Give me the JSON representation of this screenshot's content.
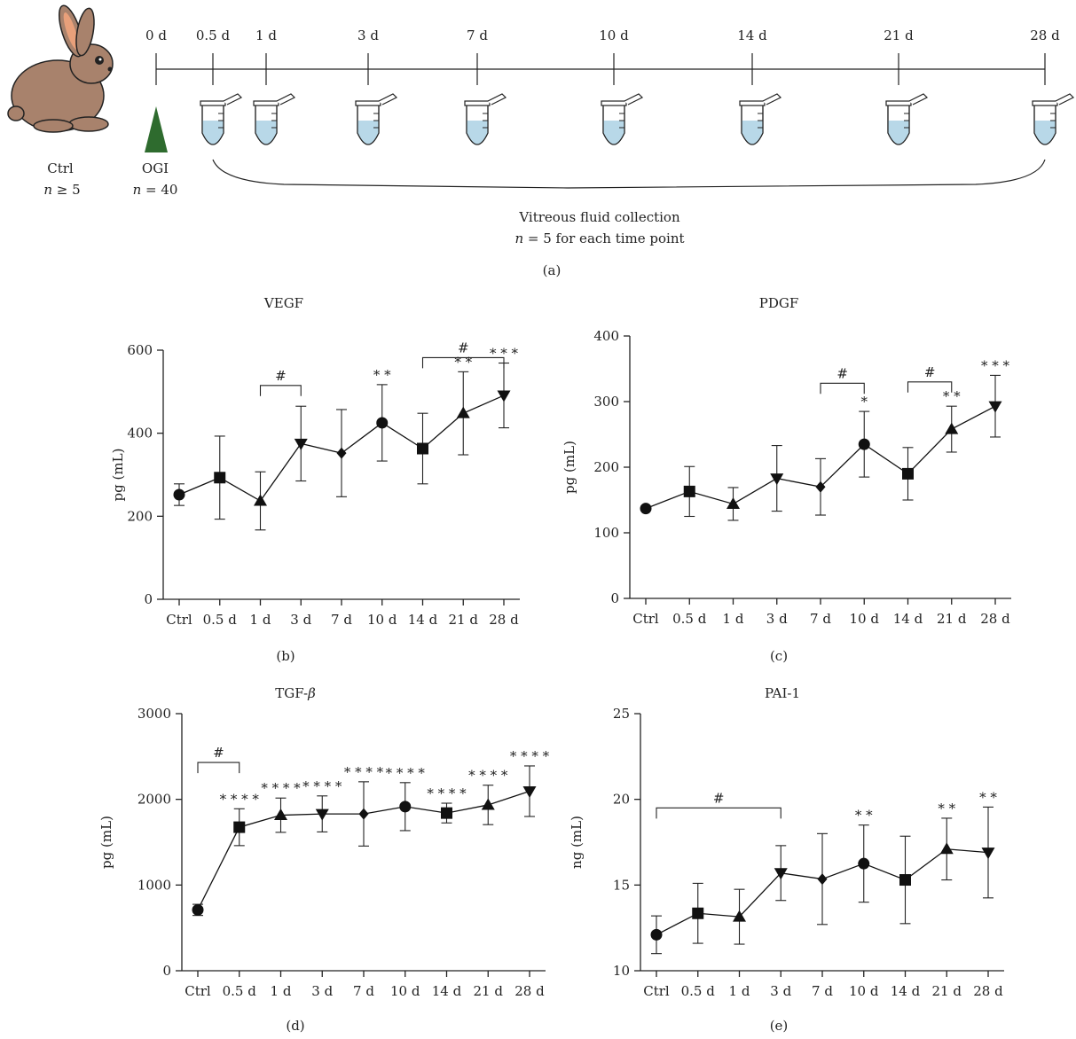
{
  "schematic": {
    "timeline_labels": [
      "0 d",
      "0.5 d",
      "1 d",
      "3 d",
      "7 d",
      "10 d",
      "14 d",
      "21 d",
      "28 d"
    ],
    "ctrl_label": "Ctrl",
    "ctrl_n_var": "n",
    "ctrl_n_rest": " ≥ 5",
    "ogi_label": "OGI",
    "ogi_n_var": "n",
    "ogi_n_rest": " = 40",
    "collection_title": "Vitreous fluid collection",
    "collection_n_var": "n",
    "collection_n_rest": " = 5 for each time point",
    "panel_letter": "(a)",
    "colors": {
      "rabbit_body": "#a8826c",
      "rabbit_ear": "#e8a07a",
      "triangle": "#2e6b2e",
      "tube_fluid": "#b8d8e8"
    },
    "icons": [
      "rabbit-icon",
      "triangle-icon",
      "tube-icon"
    ]
  },
  "chart_data": [
    {
      "id": "b",
      "type": "line",
      "title": "VEGF",
      "ylabel": "pg (mL)",
      "xlabel": "",
      "panel_letter": "(b)",
      "categories": [
        "Ctrl",
        "0.5 d",
        "1 d",
        "3 d",
        "7 d",
        "10 d",
        "14 d",
        "21 d",
        "28 d"
      ],
      "yticks": [
        0,
        200,
        400,
        600
      ],
      "ylim": [
        0,
        600
      ],
      "values": [
        252,
        293,
        237,
        375,
        352,
        425,
        363,
        448,
        491
      ],
      "errors": [
        26,
        100,
        70,
        90,
        105,
        92,
        85,
        100,
        78
      ],
      "markers": [
        "circle",
        "square",
        "triangle",
        "tri-down",
        "diamond",
        "circle",
        "square",
        "triangle",
        "tri-down"
      ],
      "annotations": [
        {
          "index": 5,
          "text": "* *"
        },
        {
          "index": 7,
          "text": "* *"
        },
        {
          "index": 8,
          "text": "* * *"
        }
      ],
      "brackets": [
        {
          "from": 2,
          "to": 3,
          "y": 515,
          "text": "#"
        },
        {
          "from": 6,
          "to": 8,
          "y": 582,
          "text": "#"
        }
      ]
    },
    {
      "id": "c",
      "type": "line",
      "title": "PDGF",
      "ylabel": "pg (mL)",
      "xlabel": "",
      "panel_letter": "(c)",
      "categories": [
        "Ctrl",
        "0.5 d",
        "1 d",
        "3 d",
        "7 d",
        "10 d",
        "14 d",
        "21 d",
        "28 d"
      ],
      "yticks": [
        0,
        100,
        200,
        300,
        400
      ],
      "ylim": [
        0,
        400
      ],
      "values": [
        137,
        163,
        144,
        183,
        170,
        235,
        190,
        258,
        293
      ],
      "errors": [
        3,
        38,
        25,
        50,
        43,
        50,
        40,
        35,
        47
      ],
      "markers": [
        "circle",
        "square",
        "triangle",
        "tri-down",
        "diamond",
        "circle",
        "square",
        "triangle",
        "tri-down"
      ],
      "annotations": [
        {
          "index": 5,
          "text": "*"
        },
        {
          "index": 7,
          "text": "* *"
        },
        {
          "index": 8,
          "text": "* * *"
        }
      ],
      "brackets": [
        {
          "from": 4,
          "to": 5,
          "y": 328,
          "text": "#"
        },
        {
          "from": 6,
          "to": 7,
          "y": 330,
          "text": "#"
        }
      ]
    },
    {
      "id": "d",
      "type": "line",
      "title": "TGF-",
      "title_sym": "β",
      "ylabel": "pg (mL)",
      "xlabel": "",
      "panel_letter": "(d)",
      "categories": [
        "Ctrl",
        "0.5 d",
        "1 d",
        "3 d",
        "7 d",
        "10 d",
        "14 d",
        "21 d",
        "28 d"
      ],
      "yticks": [
        0,
        1000,
        2000,
        3000
      ],
      "ylim": [
        0,
        3000
      ],
      "values": [
        710,
        1675,
        1815,
        1830,
        1830,
        1915,
        1840,
        1935,
        2095
      ],
      "errors": [
        65,
        215,
        200,
        210,
        375,
        280,
        115,
        230,
        295
      ],
      "markers": [
        "circle",
        "square",
        "triangle",
        "tri-down",
        "diamond",
        "circle",
        "square",
        "triangle",
        "tri-down"
      ],
      "annotations": [
        {
          "index": 1,
          "text": "* * * *"
        },
        {
          "index": 2,
          "text": "* * * *"
        },
        {
          "index": 3,
          "text": "* * * *"
        },
        {
          "index": 4,
          "text": "* * * *"
        },
        {
          "index": 5,
          "text": "* * * *"
        },
        {
          "index": 6,
          "text": "* * * *"
        },
        {
          "index": 7,
          "text": "* * * *"
        },
        {
          "index": 8,
          "text": "* * * *"
        }
      ],
      "brackets": [
        {
          "from": 0,
          "to": 1,
          "y": 2430,
          "text": "#"
        }
      ]
    },
    {
      "id": "e",
      "type": "line",
      "title": "PAI-1",
      "ylabel": "ng (mL)",
      "xlabel": "",
      "panel_letter": "(e)",
      "categories": [
        "Ctrl",
        "0.5 d",
        "1 d",
        "3 d",
        "7 d",
        "10 d",
        "14 d",
        "21 d",
        "28 d"
      ],
      "yticks": [
        10,
        15,
        20,
        25
      ],
      "ylim": [
        10,
        25
      ],
      "values": [
        12.1,
        13.35,
        13.15,
        15.7,
        15.35,
        16.25,
        15.3,
        17.1,
        16.9
      ],
      "errors": [
        1.1,
        1.75,
        1.6,
        1.6,
        2.65,
        2.25,
        2.55,
        1.8,
        2.65
      ],
      "markers": [
        "circle",
        "square",
        "triangle",
        "tri-down",
        "diamond",
        "circle",
        "square",
        "triangle",
        "tri-down"
      ],
      "annotations": [
        {
          "index": 5,
          "text": "* *"
        },
        {
          "index": 7,
          "text": "* *"
        },
        {
          "index": 8,
          "text": "* *"
        }
      ],
      "brackets": [
        {
          "from": 0,
          "to": 3,
          "y": 19.5,
          "text": "#"
        }
      ]
    }
  ]
}
